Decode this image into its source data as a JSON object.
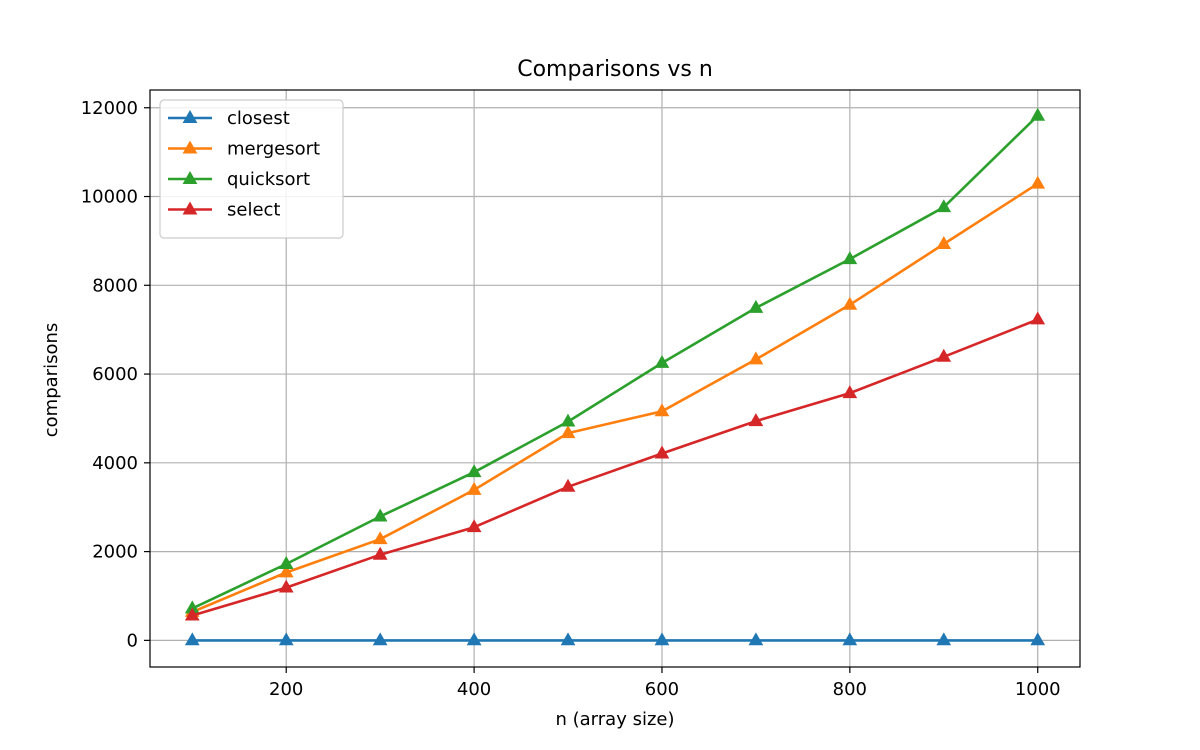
{
  "chart_data": {
    "type": "line",
    "title": "Comparisons vs n",
    "xlabel": "n (array size)",
    "ylabel": "comparisons",
    "x": [
      100,
      200,
      300,
      400,
      500,
      600,
      700,
      800,
      900,
      1000
    ],
    "xlim": [
      55,
      1045
    ],
    "ylim": [
      -600,
      12400
    ],
    "xticks": [
      200,
      400,
      600,
      800,
      1000
    ],
    "yticks": [
      0,
      2000,
      4000,
      6000,
      8000,
      10000,
      12000
    ],
    "grid": true,
    "legend_position": "upper-left",
    "marker": "triangle",
    "series": [
      {
        "name": "closest",
        "color": "#1f77b4",
        "values": [
          0,
          0,
          0,
          0,
          0,
          0,
          0,
          0,
          0,
          0
        ]
      },
      {
        "name": "mergesort",
        "color": "#ff7f0e",
        "values": [
          640,
          1530,
          2280,
          3390,
          4670,
          5160,
          6330,
          7560,
          8930,
          10290
        ]
      },
      {
        "name": "quicksort",
        "color": "#2ca02c",
        "values": [
          720,
          1720,
          2790,
          3790,
          4930,
          6250,
          7490,
          8590,
          9760,
          11820
        ]
      },
      {
        "name": "select",
        "color": "#d62728",
        "values": [
          560,
          1190,
          1930,
          2550,
          3460,
          4210,
          4940,
          5570,
          6390,
          7230
        ]
      }
    ]
  }
}
